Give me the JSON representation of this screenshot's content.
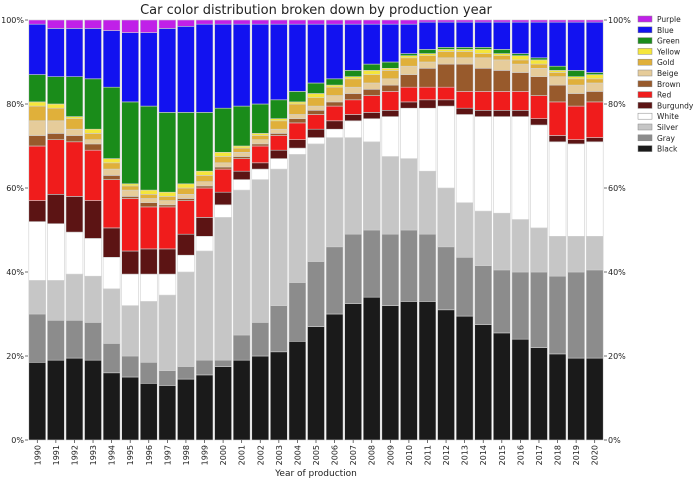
{
  "chart_data": {
    "type": "bar",
    "stacked": true,
    "normalized": true,
    "title": "Car color distribution broken down by production year",
    "xlabel": "Year of production",
    "ylabel": "",
    "ylim": [
      0,
      100
    ],
    "yticks": [
      "0%",
      "20%",
      "40%",
      "60%",
      "80%",
      "100%"
    ],
    "y_axis_both_sides": true,
    "grid": false,
    "legend_placement": "right",
    "categories": [
      "1990",
      "1991",
      "1992",
      "1993",
      "1994",
      "1995",
      "1996",
      "1997",
      "1998",
      "1999",
      "2000",
      "2001",
      "2002",
      "2003",
      "2004",
      "2005",
      "2006",
      "2007",
      "2008",
      "2009",
      "2010",
      "2011",
      "2012",
      "2013",
      "2014",
      "2015",
      "2016",
      "2017",
      "2018",
      "2019",
      "2020"
    ],
    "series": [
      {
        "name": "Black",
        "color": "#1a1a1a",
        "values": [
          18.5,
          19,
          19.5,
          19,
          16,
          15,
          13.5,
          13,
          14.5,
          15.5,
          17.5,
          19,
          20,
          21,
          23.5,
          27,
          30,
          32.5,
          34,
          32,
          33,
          33,
          31,
          29.5,
          27.5,
          25.5,
          24,
          22,
          20.5,
          19.5,
          19.5
        ]
      },
      {
        "name": "Gray",
        "color": "#8c8c8c",
        "values": [
          11.5,
          9.5,
          9,
          9,
          7,
          5,
          5,
          3.5,
          3,
          3.5,
          1.5,
          6,
          8,
          11,
          14,
          15.5,
          16,
          16.5,
          16,
          17,
          17,
          16,
          15,
          14,
          14,
          15,
          16,
          18,
          18.5,
          20.5,
          21
        ]
      },
      {
        "name": "Silver",
        "color": "#c6c6c6",
        "values": [
          8,
          9.5,
          11,
          11,
          13,
          12,
          14.5,
          18,
          22.5,
          26,
          34,
          34.5,
          34,
          32.5,
          30.5,
          28,
          26,
          23,
          21,
          18.5,
          17,
          15,
          14,
          13,
          13,
          13.5,
          12.5,
          10.5,
          9.5,
          8.5,
          8
        ]
      },
      {
        "name": "White",
        "color": "#ffffff",
        "values": [
          14,
          13.5,
          10,
          9,
          7.5,
          7.5,
          6.5,
          5,
          4,
          3.5,
          3,
          2.5,
          2.5,
          2.5,
          1.5,
          1.5,
          2,
          4,
          5.5,
          9.5,
          12,
          15,
          19.5,
          21,
          22.5,
          23,
          24.5,
          24.5,
          22.5,
          22,
          22.5
        ]
      },
      {
        "name": "Burgundy",
        "color": "#5c1414",
        "values": [
          5,
          7,
          8.5,
          9,
          7,
          5.5,
          6,
          6,
          5,
          4.5,
          3,
          2,
          1.5,
          2,
          2,
          2,
          2,
          1.5,
          1.5,
          1.5,
          1.5,
          2,
          1.5,
          1.5,
          1.5,
          1.5,
          1.5,
          1.5,
          1.5,
          1,
          1
        ]
      },
      {
        "name": "Red",
        "color": "#f01c1c",
        "values": [
          13,
          13,
          13,
          12,
          11.5,
          12.5,
          10,
          10,
          8,
          7,
          5.5,
          3,
          4,
          3.5,
          4,
          3.5,
          3.5,
          3.5,
          4,
          4.5,
          3.5,
          3,
          3,
          4,
          4.5,
          4.5,
          4.5,
          5.5,
          8,
          8,
          8.5
        ]
      },
      {
        "name": "Brown",
        "color": "#985a2c",
        "values": [
          2.5,
          1.5,
          1.5,
          1.5,
          1,
          0.5,
          1,
          0.5,
          0.5,
          0.5,
          0.5,
          0.5,
          0.5,
          0.5,
          1,
          1,
          1,
          1.5,
          1.5,
          1.5,
          3,
          4.5,
          5.5,
          6.5,
          5.5,
          5,
          4.5,
          4.5,
          4,
          3,
          2.5
        ]
      },
      {
        "name": "Beige",
        "color": "#e6cc9a",
        "values": [
          3.5,
          3,
          1.5,
          1,
          1.5,
          1.5,
          1,
          1,
          1,
          1,
          1,
          1,
          1,
          1,
          1,
          1,
          1.5,
          1.5,
          1.5,
          1.5,
          2,
          1.5,
          1.5,
          1.5,
          2.5,
          2.5,
          2,
          2,
          2,
          2,
          2
        ]
      },
      {
        "name": "Gold",
        "color": "#e0b03a",
        "values": [
          3.5,
          3,
          2.5,
          1.5,
          1.5,
          1,
          1,
          1,
          1.5,
          1.5,
          1.5,
          1,
          1,
          2,
          2.5,
          2,
          2,
          2,
          2,
          2,
          2,
          1.5,
          1.5,
          1.5,
          1,
          1,
          1,
          1,
          1,
          1.5,
          1
        ]
      },
      {
        "name": "Yellow",
        "color": "#f5e63b",
        "values": [
          1,
          1,
          0.5,
          1,
          1,
          0.5,
          1,
          1,
          1,
          1,
          1,
          0.5,
          0.5,
          0.5,
          0.5,
          1,
          0.5,
          0.5,
          1,
          0.5,
          0.5,
          0.5,
          0.5,
          0.5,
          1,
          0.5,
          1,
          1,
          0.5,
          0.5,
          1
        ]
      },
      {
        "name": "Green",
        "color": "#1a8c1a",
        "values": [
          6.5,
          6.5,
          9.5,
          12,
          17,
          19.5,
          20,
          19,
          17,
          14,
          10.5,
          9.5,
          7,
          4.5,
          2.5,
          2.5,
          1.5,
          1.5,
          1.5,
          1.5,
          0.5,
          1,
          0.5,
          0.5,
          0.5,
          1,
          0.5,
          0.5,
          1,
          1.5,
          0.5
        ]
      },
      {
        "name": "Blue",
        "color": "#1212f0",
        "values": [
          12,
          11.5,
          11.5,
          12,
          13.5,
          16.5,
          17.5,
          20,
          20.5,
          21,
          20,
          19.5,
          19,
          18,
          16,
          14,
          13,
          11,
          9.5,
          9,
          7,
          6.5,
          6,
          6,
          6,
          6.5,
          7.5,
          8.5,
          10.5,
          11.5,
          12
        ]
      },
      {
        "name": "Purple",
        "color": "#c020e8",
        "values": [
          1,
          2,
          2,
          2,
          2.5,
          3,
          3,
          2,
          1.5,
          1,
          1,
          1,
          1,
          1,
          1,
          1,
          1,
          1,
          1,
          1,
          1,
          0.5,
          0.5,
          0.5,
          0.5,
          0.5,
          0.5,
          0.5,
          0.5,
          0.5,
          0.5
        ]
      }
    ]
  }
}
